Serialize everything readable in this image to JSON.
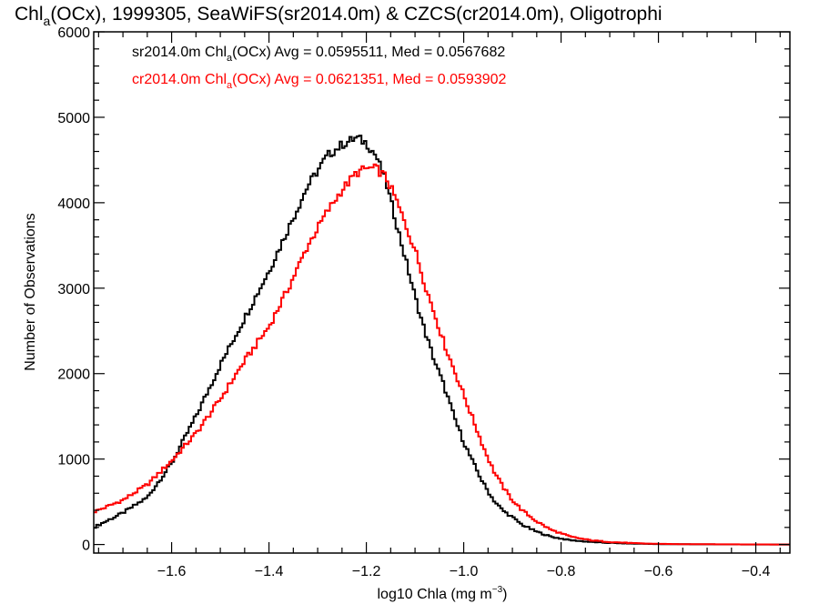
{
  "chart_data": {
    "type": "line",
    "title": {
      "pre": "Chl",
      "sub": "a",
      "post": "(OCx), 1999305, SeaWiFS(sr2014.0m) & CZCS(cr2014.0m), Oligotrophi"
    },
    "xlabel": {
      "pre": "log10 Chla (mg m",
      "sup": "−3",
      "post": ")"
    },
    "ylabel": "Number of Observations",
    "xlim": [
      -1.76,
      -0.33
    ],
    "ylim": [
      -100,
      6000
    ],
    "x_ticks": [
      -1.6,
      -1.4,
      -1.2,
      -1.0,
      -0.8,
      -0.6,
      -0.4
    ],
    "x_tick_labels": [
      "−1.6",
      "−1.4",
      "−1.2",
      "−1.0",
      "−0.8",
      "−0.6",
      "−0.4"
    ],
    "y_ticks": [
      0,
      1000,
      2000,
      3000,
      4000,
      5000,
      6000
    ],
    "y_tick_labels": [
      "0",
      "1000",
      "2000",
      "3000",
      "4000",
      "5000",
      "6000"
    ],
    "grid": false,
    "legend": [
      {
        "pre": "sr2014.0m Chl",
        "sub": "a",
        "post": "(OCx) Avg = 0.0595511, Med = 0.0567682",
        "color": "#000000"
      },
      {
        "pre": "cr2014.0m Chl",
        "sub": "a",
        "post": "(OCx) Avg = 0.0621351, Med = 0.0593902",
        "color": "#ff0000"
      }
    ],
    "series": [
      {
        "color": "#000000",
        "x": [
          -1.76,
          -1.7,
          -1.65,
          -1.6,
          -1.55,
          -1.5,
          -1.45,
          -1.4,
          -1.36,
          -1.32,
          -1.28,
          -1.25,
          -1.22,
          -1.2,
          -1.18,
          -1.16,
          -1.14,
          -1.12,
          -1.1,
          -1.08,
          -1.06,
          -1.04,
          -1.02,
          -1.0,
          -0.98,
          -0.96,
          -0.94,
          -0.92,
          -0.9,
          -0.88,
          -0.85,
          -0.82,
          -0.78,
          -0.74,
          -0.7,
          -0.65,
          -0.6,
          -0.55,
          -0.5,
          -0.45,
          -0.4,
          -0.33
        ],
        "y": [
          200,
          370,
          550,
          950,
          1500,
          2100,
          2650,
          3200,
          3700,
          4200,
          4550,
          4680,
          4760,
          4700,
          4550,
          4250,
          3800,
          3350,
          2900,
          2500,
          2150,
          1850,
          1500,
          1200,
          950,
          720,
          530,
          400,
          320,
          230,
          150,
          90,
          50,
          30,
          18,
          10,
          5,
          3,
          2,
          1,
          0,
          0
        ]
      },
      {
        "color": "#ff0000",
        "x": [
          -1.76,
          -1.7,
          -1.65,
          -1.6,
          -1.55,
          -1.5,
          -1.45,
          -1.4,
          -1.36,
          -1.32,
          -1.28,
          -1.25,
          -1.22,
          -1.2,
          -1.18,
          -1.16,
          -1.14,
          -1.12,
          -1.1,
          -1.08,
          -1.06,
          -1.04,
          -1.02,
          -1.0,
          -0.98,
          -0.96,
          -0.94,
          -0.92,
          -0.9,
          -0.88,
          -0.85,
          -0.82,
          -0.78,
          -0.74,
          -0.7,
          -0.65,
          -0.6,
          -0.55,
          -0.5,
          -0.45,
          -0.4,
          -0.33
        ],
        "y": [
          380,
          520,
          700,
          980,
          1300,
          1700,
          2150,
          2550,
          3000,
          3500,
          3900,
          4150,
          4350,
          4400,
          4400,
          4300,
          4050,
          3750,
          3450,
          3050,
          2700,
          2350,
          2050,
          1750,
          1450,
          1150,
          880,
          680,
          520,
          400,
          270,
          170,
          90,
          50,
          30,
          15,
          8,
          4,
          3,
          2,
          1,
          0
        ]
      }
    ]
  }
}
